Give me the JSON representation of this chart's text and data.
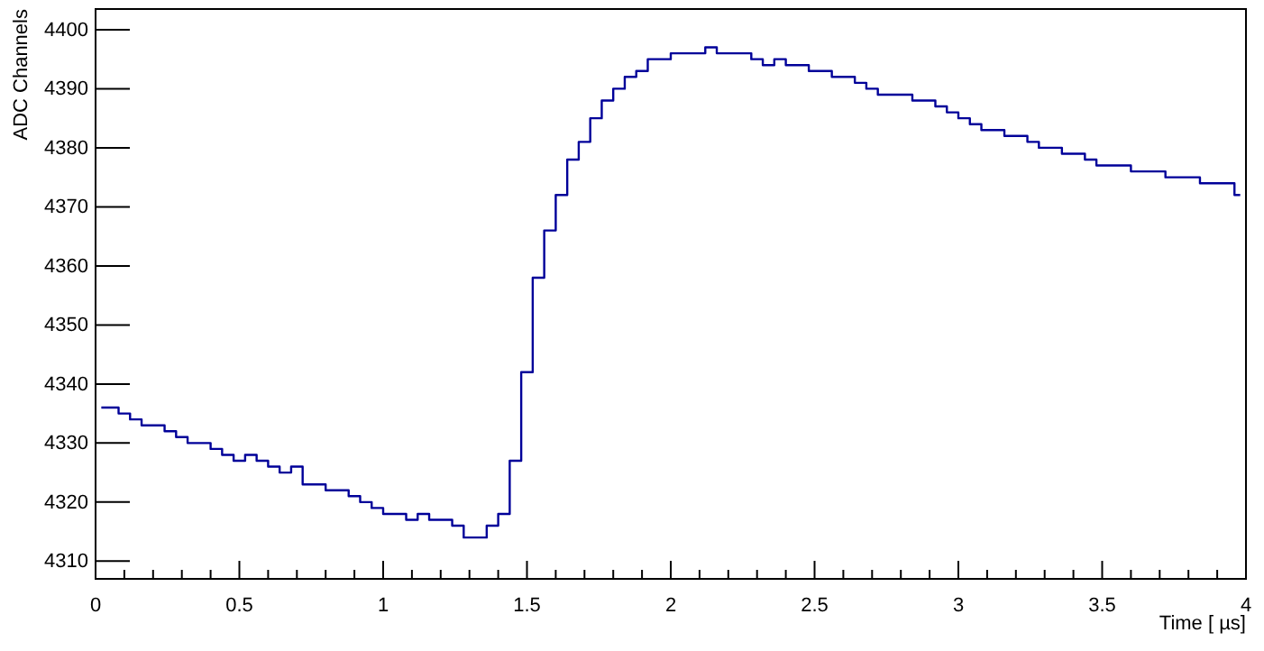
{
  "chart_data": {
    "type": "step",
    "xlabel": "Time [ µs]",
    "ylabel": "ADC Channels",
    "color": "#000099",
    "x": [
      0.02,
      0.06,
      0.1,
      0.14,
      0.18,
      0.22,
      0.26,
      0.3,
      0.34,
      0.38,
      0.42,
      0.46,
      0.5,
      0.54,
      0.58,
      0.62,
      0.66,
      0.7,
      0.74,
      0.78,
      0.82,
      0.86,
      0.9,
      0.94,
      0.98,
      1.02,
      1.06,
      1.1,
      1.14,
      1.18,
      1.22,
      1.26,
      1.3,
      1.34,
      1.38,
      1.42,
      1.46,
      1.5,
      1.54,
      1.58,
      1.62,
      1.66,
      1.7,
      1.74,
      1.78,
      1.82,
      1.86,
      1.9,
      1.94,
      1.98,
      2.02,
      2.06,
      2.1,
      2.14,
      2.18,
      2.22,
      2.26,
      2.3,
      2.34,
      2.38,
      2.42,
      2.46,
      2.5,
      2.54,
      2.58,
      2.62,
      2.66,
      2.7,
      2.74,
      2.78,
      2.82,
      2.86,
      2.9,
      2.94,
      2.98,
      3.02,
      3.06,
      3.1,
      3.14,
      3.18,
      3.22,
      3.26,
      3.3,
      3.34,
      3.38,
      3.42,
      3.46,
      3.5,
      3.54,
      3.58,
      3.62,
      3.66,
      3.7,
      3.74,
      3.78,
      3.82,
      3.86,
      3.9,
      3.94,
      3.98
    ],
    "values": [
      4336,
      4336,
      4335,
      4334,
      4333,
      4333,
      4332,
      4331,
      4330,
      4330,
      4329,
      4328,
      4327,
      4328,
      4327,
      4326,
      4325,
      4326,
      4323,
      4323,
      4322,
      4322,
      4321,
      4320,
      4319,
      4318,
      4318,
      4317,
      4318,
      4317,
      4317,
      4316,
      4314,
      4314,
      4316,
      4318,
      4327,
      4342,
      4358,
      4366,
      4372,
      4378,
      4381,
      4385,
      4388,
      4390,
      4392,
      4393,
      4395,
      4395,
      4396,
      4396,
      4396,
      4397,
      4396,
      4396,
      4396,
      4395,
      4394,
      4395,
      4394,
      4394,
      4393,
      4393,
      4392,
      4392,
      4391,
      4390,
      4389,
      4389,
      4389,
      4388,
      4388,
      4387,
      4386,
      4385,
      4384,
      4383,
      4383,
      4382,
      4382,
      4381,
      4380,
      4380,
      4379,
      4379,
      4378,
      4377,
      4377,
      4377,
      4376,
      4376,
      4376,
      4375,
      4375,
      4375,
      4374,
      4374,
      4374,
      4372
    ],
    "xlim": [
      0,
      4
    ],
    "ylim": [
      4307,
      4403.5
    ],
    "xticks": [
      0,
      {
        "value": 0.1,
        "label": null
      },
      {
        "value": 0.2,
        "label": null
      },
      {
        "value": 0.3,
        "label": null
      },
      {
        "value": 0.4,
        "label": null
      },
      0.5,
      {
        "value": 0.6,
        "label": null
      },
      {
        "value": 0.7,
        "label": null
      },
      {
        "value": 0.8,
        "label": null
      },
      {
        "value": 0.9,
        "label": null
      },
      1,
      {
        "value": 1.1,
        "label": null
      },
      {
        "value": 1.2,
        "label": null
      },
      {
        "value": 1.3,
        "label": null
      },
      {
        "value": 1.4,
        "label": null
      },
      1.5,
      {
        "value": 1.6,
        "label": null
      },
      {
        "value": 1.7,
        "label": null
      },
      {
        "value": 1.8,
        "label": null
      },
      {
        "value": 1.9,
        "label": null
      },
      2,
      {
        "value": 2.1,
        "label": null
      },
      {
        "value": 2.2,
        "label": null
      },
      {
        "value": 2.3,
        "label": null
      },
      {
        "value": 2.4,
        "label": null
      },
      2.5,
      {
        "value": 2.6,
        "label": null
      },
      {
        "value": 2.7,
        "label": null
      },
      {
        "value": 2.8,
        "label": null
      },
      {
        "value": 2.9,
        "label": null
      },
      3,
      {
        "value": 3.1,
        "label": null
      },
      {
        "value": 3.2,
        "label": null
      },
      {
        "value": 3.3,
        "label": null
      },
      {
        "value": 3.4,
        "label": null
      },
      3.5,
      {
        "value": 3.6,
        "label": null
      },
      {
        "value": 3.7,
        "label": null
      },
      {
        "value": 3.8,
        "label": null
      },
      {
        "value": 3.9,
        "label": null
      },
      4
    ],
    "yticks": [
      4310,
      4320,
      4330,
      4340,
      4350,
      4360,
      4370,
      4380,
      4390,
      4400
    ]
  }
}
